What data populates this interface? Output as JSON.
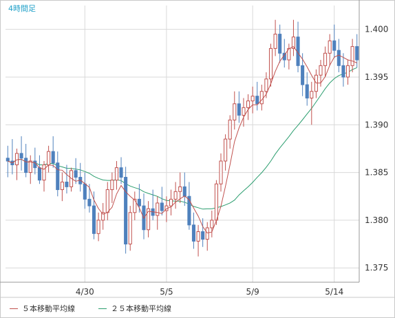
{
  "timeframe_label": "4時間足",
  "legend": {
    "ma5": {
      "label": "５本移動平均線",
      "color": "#c0504d"
    },
    "ma25": {
      "label": "２５本移動平均線",
      "color": "#2a9d6e"
    }
  },
  "colors": {
    "up": "#c0504d",
    "down": "#4f81bd",
    "grid": "#d9d9d9",
    "border": "#999999"
  },
  "chart_data": {
    "type": "candlestick",
    "ylim": [
      1.3735,
      1.4025
    ],
    "y_ticks": [
      "1.375",
      "1.380",
      "1.385",
      "1.390",
      "1.395",
      "1.400"
    ],
    "x_tick_labels": [
      {
        "label": "4/30",
        "index": 17
      },
      {
        "label": "5/5",
        "index": 35
      },
      {
        "label": "5/9",
        "index": 54
      },
      {
        "label": "5/14",
        "index": 72
      }
    ],
    "candles": [
      [
        1.3865,
        1.3878,
        1.3845,
        1.3862
      ],
      [
        1.3862,
        1.3885,
        1.3848,
        1.3858
      ],
      [
        1.3858,
        1.3875,
        1.3842,
        1.387
      ],
      [
        1.387,
        1.3888,
        1.3852,
        1.3865
      ],
      [
        1.3865,
        1.388,
        1.3845,
        1.385
      ],
      [
        1.385,
        1.3868,
        1.3838,
        1.3862
      ],
      [
        1.3862,
        1.3876,
        1.3848,
        1.3855
      ],
      [
        1.3855,
        1.3868,
        1.3838,
        1.3842
      ],
      [
        1.3842,
        1.3862,
        1.383,
        1.3858
      ],
      [
        1.3858,
        1.3878,
        1.385,
        1.3872
      ],
      [
        1.3872,
        1.3888,
        1.3855,
        1.386
      ],
      [
        1.386,
        1.3872,
        1.3825,
        1.3832
      ],
      [
        1.3832,
        1.385,
        1.382,
        1.384
      ],
      [
        1.384,
        1.3858,
        1.3828,
        1.3835
      ],
      [
        1.3835,
        1.3855,
        1.383,
        1.3852
      ],
      [
        1.3852,
        1.3865,
        1.3838,
        1.3845
      ],
      [
        1.3845,
        1.386,
        1.383,
        1.3838
      ],
      [
        1.3838,
        1.385,
        1.3812,
        1.3822
      ],
      [
        1.3822,
        1.3838,
        1.3808,
        1.3815
      ],
      [
        1.3815,
        1.383,
        1.378,
        1.3786
      ],
      [
        1.3786,
        1.3808,
        1.3778,
        1.38
      ],
      [
        1.38,
        1.3818,
        1.379,
        1.3808
      ],
      [
        1.3808,
        1.384,
        1.38,
        1.3832
      ],
      [
        1.3832,
        1.385,
        1.3818,
        1.3842
      ],
      [
        1.3842,
        1.3862,
        1.3832,
        1.3855
      ],
      [
        1.3855,
        1.3866,
        1.3838,
        1.3845
      ],
      [
        1.3845,
        1.3856,
        1.3765,
        1.3775
      ],
      [
        1.3775,
        1.3815,
        1.3768,
        1.3808
      ],
      [
        1.3808,
        1.383,
        1.38,
        1.3822
      ],
      [
        1.3822,
        1.3838,
        1.3808,
        1.3815
      ],
      [
        1.3815,
        1.3828,
        1.378,
        1.379
      ],
      [
        1.379,
        1.382,
        1.3782,
        1.3812
      ],
      [
        1.3812,
        1.3832,
        1.38,
        1.3805
      ],
      [
        1.3805,
        1.3825,
        1.379,
        1.3818
      ],
      [
        1.3818,
        1.3835,
        1.3805,
        1.381
      ],
      [
        1.381,
        1.3825,
        1.3798,
        1.3815
      ],
      [
        1.3815,
        1.3832,
        1.3805,
        1.3822
      ],
      [
        1.3822,
        1.384,
        1.3812,
        1.383
      ],
      [
        1.383,
        1.385,
        1.3818,
        1.3835
      ],
      [
        1.3835,
        1.385,
        1.3815,
        1.3825
      ],
      [
        1.3825,
        1.384,
        1.379,
        1.3795
      ],
      [
        1.3795,
        1.3808,
        1.377,
        1.3778
      ],
      [
        1.3778,
        1.3795,
        1.3762,
        1.3788
      ],
      [
        1.3788,
        1.3802,
        1.3772,
        1.378
      ],
      [
        1.378,
        1.3798,
        1.3768,
        1.3792
      ],
      [
        1.3792,
        1.381,
        1.3782,
        1.38
      ],
      [
        1.38,
        1.3842,
        1.3795,
        1.3838
      ],
      [
        1.3838,
        1.387,
        1.383,
        1.3862
      ],
      [
        1.3862,
        1.389,
        1.3852,
        1.3885
      ],
      [
        1.3885,
        1.391,
        1.3875,
        1.3905
      ],
      [
        1.3905,
        1.3935,
        1.3895,
        1.3922
      ],
      [
        1.3922,
        1.3935,
        1.3902,
        1.391
      ],
      [
        1.391,
        1.3928,
        1.3898,
        1.3918
      ],
      [
        1.3918,
        1.3932,
        1.3905,
        1.3925
      ],
      [
        1.3925,
        1.394,
        1.3912,
        1.393
      ],
      [
        1.393,
        1.3945,
        1.3915,
        1.3922
      ],
      [
        1.3922,
        1.3942,
        1.3915,
        1.3935
      ],
      [
        1.3935,
        1.3955,
        1.3928,
        1.3948
      ],
      [
        1.3948,
        1.3985,
        1.394,
        1.398
      ],
      [
        1.398,
        1.401,
        1.3972,
        1.3995
      ],
      [
        1.3995,
        1.4005,
        1.3965,
        1.3975
      ],
      [
        1.3975,
        1.399,
        1.396,
        1.3968
      ],
      [
        1.3968,
        1.3985,
        1.3958,
        1.398
      ],
      [
        1.398,
        1.401,
        1.3972,
        1.3992
      ],
      [
        1.3992,
        1.4008,
        1.3955,
        1.3962
      ],
      [
        1.3962,
        1.3975,
        1.393,
        1.3942
      ],
      [
        1.3942,
        1.3955,
        1.392,
        1.3928
      ],
      [
        1.3928,
        1.3945,
        1.39,
        1.3935
      ],
      [
        1.3935,
        1.3958,
        1.3928,
        1.3952
      ],
      [
        1.3952,
        1.3968,
        1.394,
        1.3962
      ],
      [
        1.3962,
        1.3982,
        1.395,
        1.3975
      ],
      [
        1.3975,
        1.3995,
        1.3962,
        1.3988
      ],
      [
        1.3988,
        1.4005,
        1.397,
        1.3978
      ],
      [
        1.3978,
        1.399,
        1.3955,
        1.3962
      ],
      [
        1.3962,
        1.3975,
        1.394,
        1.395
      ],
      [
        1.395,
        1.3968,
        1.3942,
        1.3962
      ],
      [
        1.3962,
        1.399,
        1.3955,
        1.3982
      ],
      [
        1.3982,
        1.3995,
        1.396,
        1.3968
      ]
    ]
  }
}
